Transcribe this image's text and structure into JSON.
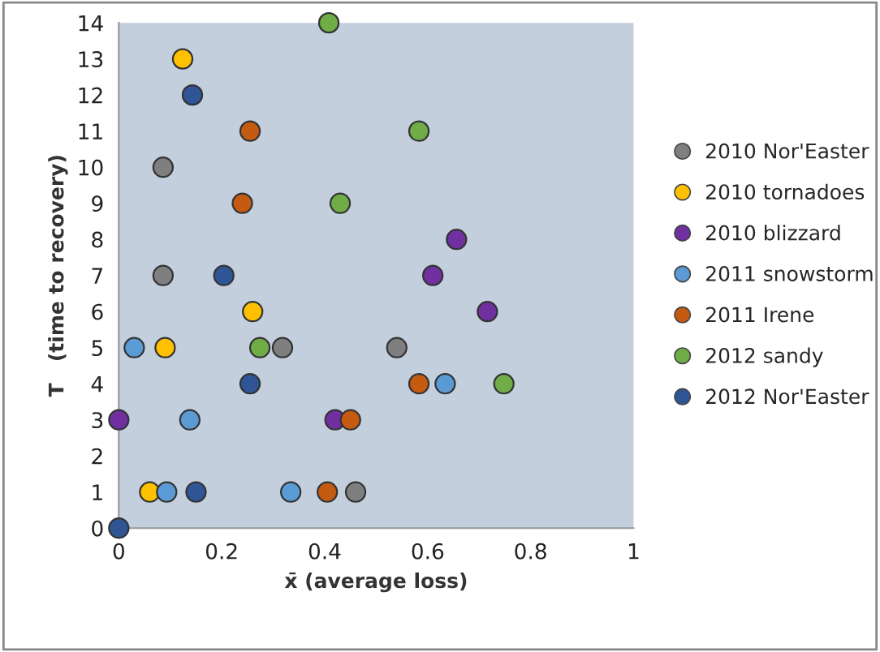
{
  "chart_data": {
    "type": "scatter",
    "xlabel": "x̄ (average loss)",
    "ylabel": "T   (time to recovery)",
    "xlim": [
      0,
      1
    ],
    "xticks": [
      0,
      0.2,
      0.4,
      0.6,
      0.8,
      1
    ],
    "ylim": [
      0,
      14
    ],
    "yticks": [
      0,
      1,
      2,
      3,
      4,
      5,
      6,
      7,
      8,
      9,
      10,
      11,
      12,
      13,
      14
    ],
    "grid": false,
    "legend": "right",
    "marker": "circle",
    "series": [
      {
        "name": "2010 Nor'Easter",
        "color": "#7f7f7f",
        "x": [
          0.086,
          0.086,
          0.318,
          0.54,
          0.46
        ],
        "values": [
          10,
          7,
          5,
          5,
          1
        ]
      },
      {
        "name": "2010 tornadoes",
        "color": "#ffc000",
        "x": [
          0.124,
          0.26,
          0.09,
          0.06
        ],
        "values": [
          13,
          6,
          5,
          1
        ]
      },
      {
        "name": "2010 blizzard",
        "color": "#7030a0",
        "x": [
          0,
          0.656,
          0.61,
          0.716,
          0.42
        ],
        "values": [
          3,
          8,
          7,
          6,
          3
        ]
      },
      {
        "name": "2011 snowstorm",
        "color": "#5b9bd5",
        "x": [
          0.03,
          0.138,
          0.093,
          0.334,
          0.634
        ],
        "values": [
          5,
          3,
          1,
          1,
          4
        ]
      },
      {
        "name": "2011 Irene",
        "color": "#c55a11",
        "x": [
          0.255,
          0.24,
          0.583,
          0.45,
          0.405
        ],
        "values": [
          11,
          9,
          4,
          3,
          1
        ]
      },
      {
        "name": "2012 sandy",
        "color": "#70ad47",
        "x": [
          0.408,
          0.583,
          0.43,
          0.274,
          0.748
        ],
        "values": [
          14,
          11,
          9,
          5,
          4
        ]
      },
      {
        "name": "2012 Nor'Easter",
        "color": "#2f5597",
        "x": [
          0.143,
          0.204,
          0.255,
          0.15,
          0
        ],
        "values": [
          12,
          7,
          4,
          1,
          0
        ]
      }
    ]
  }
}
